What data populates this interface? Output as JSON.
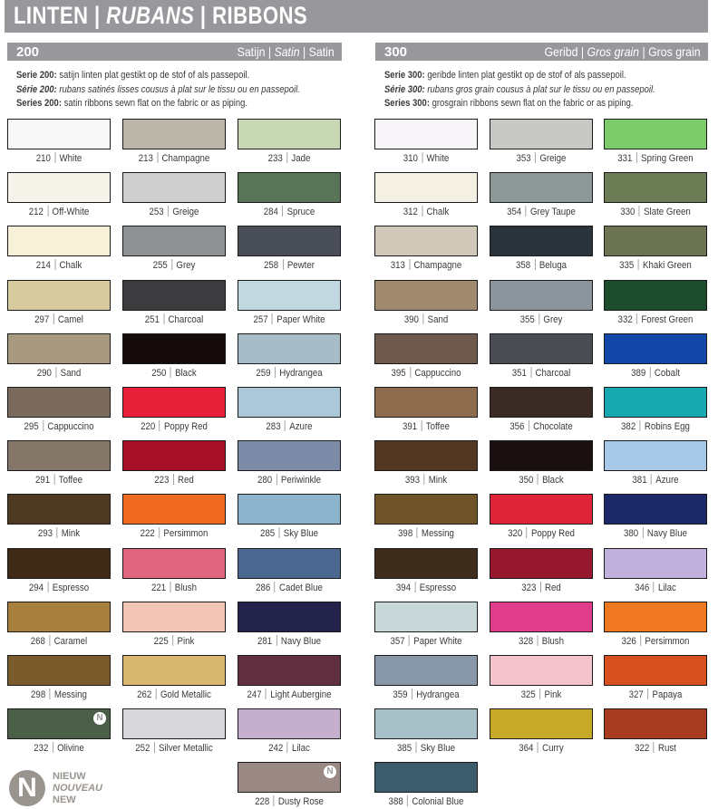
{
  "header": {
    "title_1": "LINTEN",
    "title_2": "RUBANS",
    "title_3": "RIBBONS",
    "separator": "|"
  },
  "new_badge": "N",
  "legend": {
    "badge": "N",
    "nl": "NIEUW",
    "fr": "NOUVEAU",
    "en": "NEW"
  },
  "series": [
    {
      "number": "200",
      "name_nl": "Satijn",
      "name_fr": "Satin",
      "name_en": "Satin",
      "desc_nl_label": "Serie 200:",
      "desc_nl": "satijn linten plat gestikt op de stof of als passepoil.",
      "desc_fr_label": "Série 200:",
      "desc_fr": "rubans satinés lisses cousus à plat sur le tissu ou en passepoil.",
      "desc_en_label": "Series 200:",
      "desc_en": "satin ribbons sewn flat on the fabric or as piping.",
      "columns": [
        [
          {
            "code": "210",
            "name": "White",
            "color": "#f8f8f8"
          },
          {
            "code": "212",
            "name": "Off-White",
            "color": "#f6f3ea"
          },
          {
            "code": "214",
            "name": "Chalk",
            "color": "#f7f1d9"
          },
          {
            "code": "297",
            "name": "Camel",
            "color": "#d8cba0"
          },
          {
            "code": "290",
            "name": "Sand",
            "color": "#a89a80"
          },
          {
            "code": "295",
            "name": "Cappuccino",
            "color": "#7a6a5c"
          },
          {
            "code": "291",
            "name": "Toffee",
            "color": "#85766a"
          },
          {
            "code": "293",
            "name": "Mink",
            "color": "#4e3a22"
          },
          {
            "code": "294",
            "name": "Espresso",
            "color": "#3e2a16"
          },
          {
            "code": "268",
            "name": "Caramel",
            "color": "#a8803e"
          },
          {
            "code": "298",
            "name": "Messing",
            "color": "#7a5c2c"
          },
          {
            "code": "232",
            "name": "Olivine",
            "color": "#4b5e48",
            "new": true
          }
        ],
        [
          {
            "code": "213",
            "name": "Champagne",
            "color": "#bdb6aa"
          },
          {
            "code": "253",
            "name": "Greige",
            "color": "#cfcfcf"
          },
          {
            "code": "255",
            "name": "Grey",
            "color": "#8e9295"
          },
          {
            "code": "251",
            "name": "Charcoal",
            "color": "#3c3c3e"
          },
          {
            "code": "250",
            "name": "Black",
            "color": "#140a0a"
          },
          {
            "code": "220",
            "name": "Poppy Red",
            "color": "#e8203a"
          },
          {
            "code": "223",
            "name": "Red",
            "color": "#a8102a"
          },
          {
            "code": "222",
            "name": "Persimmon",
            "color": "#f06a22"
          },
          {
            "code": "221",
            "name": "Blush",
            "color": "#e06680"
          },
          {
            "code": "225",
            "name": "Pink",
            "color": "#f2c6b4"
          },
          {
            "code": "262",
            "name": "Gold Metallic",
            "color": "#d8b870"
          },
          {
            "code": "252",
            "name": "Silver Metallic",
            "color": "#d8d8dc"
          }
        ],
        [
          {
            "code": "233",
            "name": "Jade",
            "color": "#c8d8b4"
          },
          {
            "code": "284",
            "name": "Spruce",
            "color": "#5a7458"
          },
          {
            "code": "258",
            "name": "Pewter",
            "color": "#4a4e58"
          },
          {
            "code": "257",
            "name": "Paper White",
            "color": "#c2d8e0"
          },
          {
            "code": "259",
            "name": "Hydrangea",
            "color": "#a8bcc8"
          },
          {
            "code": "283",
            "name": "Azure",
            "color": "#aac8d8"
          },
          {
            "code": "280",
            "name": "Periwinkle",
            "color": "#7c8ca8"
          },
          {
            "code": "285",
            "name": "Sky Blue",
            "color": "#8cb4cc"
          },
          {
            "code": "286",
            "name": "Cadet Blue",
            "color": "#4a6890"
          },
          {
            "code": "281",
            "name": "Navy Blue",
            "color": "#22224a"
          },
          {
            "code": "247",
            "name": "Light Aubergine",
            "color": "#603040"
          },
          {
            "code": "242",
            "name": "Lilac",
            "color": "#c4b0cc"
          },
          {
            "code": "228",
            "name": "Dusty Rose",
            "color": "#9a8884",
            "new": true
          }
        ]
      ]
    },
    {
      "number": "300",
      "name_nl": "Geribd",
      "name_fr": "Gros grain",
      "name_en": "Gros grain",
      "desc_nl_label": "Serie 300:",
      "desc_nl": "geribde linten plat gestikt op de stof of als passepoil.",
      "desc_fr_label": "Série 300:",
      "desc_fr": "rubans gros grain cousus à plat sur le tissu ou en passepoil.",
      "desc_en_label": "Series 300:",
      "desc_en": "grosgrain ribbons sewn flat on the fabric or as piping.",
      "columns": [
        [
          {
            "code": "310",
            "name": "White",
            "color": "#f8f6f8"
          },
          {
            "code": "312",
            "name": "Chalk",
            "color": "#f4f0e4"
          },
          {
            "code": "313",
            "name": "Champagne",
            "color": "#d0c8b8"
          },
          {
            "code": "390",
            "name": "Sand",
            "color": "#a08a70"
          },
          {
            "code": "395",
            "name": "Cappuccino",
            "color": "#6e5a4c"
          },
          {
            "code": "391",
            "name": "Toffee",
            "color": "#8c6c4c"
          },
          {
            "code": "393",
            "name": "Mink",
            "color": "#523820"
          },
          {
            "code": "398",
            "name": "Messing",
            "color": "#6e5428"
          },
          {
            "code": "394",
            "name": "Espresso",
            "color": "#3e2c1c"
          },
          {
            "code": "357",
            "name": "Paper White",
            "color": "#c8d8d8"
          },
          {
            "code": "359",
            "name": "Hydrangea",
            "color": "#8898a8"
          },
          {
            "code": "385",
            "name": "Sky Blue",
            "color": "#a8c0c8"
          },
          {
            "code": "388",
            "name": "Colonial Blue",
            "color": "#3c5c6c"
          }
        ],
        [
          {
            "code": "353",
            "name": "Greige",
            "color": "#c8c8c4"
          },
          {
            "code": "354",
            "name": "Grey Taupe",
            "color": "#8c9898"
          },
          {
            "code": "358",
            "name": "Beluga",
            "color": "#2a343c"
          },
          {
            "code": "355",
            "name": "Grey",
            "color": "#8c949c"
          },
          {
            "code": "351",
            "name": "Charcoal",
            "color": "#4a4c54"
          },
          {
            "code": "356",
            "name": "Chocolate",
            "color": "#3a2c24"
          },
          {
            "code": "350",
            "name": "Black",
            "color": "#1a1010"
          },
          {
            "code": "320",
            "name": "Poppy Red",
            "color": "#e02438"
          },
          {
            "code": "323",
            "name": "Red",
            "color": "#981830"
          },
          {
            "code": "328",
            "name": "Blush",
            "color": "#e03c8c"
          },
          {
            "code": "325",
            "name": "Pink",
            "color": "#f4c4cc"
          },
          {
            "code": "364",
            "name": "Curry",
            "color": "#c8a828"
          }
        ],
        [
          {
            "code": "331",
            "name": "Spring Green",
            "color": "#7ccc6c"
          },
          {
            "code": "330",
            "name": "Slate Green",
            "color": "#6c7c54"
          },
          {
            "code": "335",
            "name": "Khaki Green",
            "color": "#6c7454"
          },
          {
            "code": "332",
            "name": "Forest Green",
            "color": "#1c4c2c"
          },
          {
            "code": "389",
            "name": "Cobalt",
            "color": "#1448a8"
          },
          {
            "code": "382",
            "name": "Robins Egg",
            "color": "#18a8b0"
          },
          {
            "code": "381",
            "name": "Azure",
            "color": "#a8c8e8"
          },
          {
            "code": "380",
            "name": "Navy Blue",
            "color": "#1c2868"
          },
          {
            "code": "346",
            "name": "Lilac",
            "color": "#c0b0dc"
          },
          {
            "code": "326",
            "name": "Persimmon",
            "color": "#f07820"
          },
          {
            "code": "327",
            "name": "Papaya",
            "color": "#d85020"
          },
          {
            "code": "322",
            "name": "Rust",
            "color": "#a83c20"
          }
        ]
      ]
    }
  ]
}
